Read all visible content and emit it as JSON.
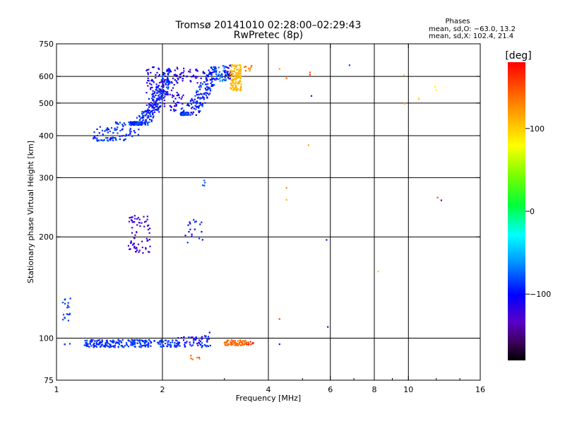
{
  "chart_data": {
    "type": "scatter",
    "title": "Tromsø 20141010 02:28:00–02:29:43",
    "subtitle": "RwPretec (8p)",
    "xlabel": "Frequency [MHz]",
    "ylabel": "Stationary phase Virtual Height [km]",
    "x_scale": "log2",
    "y_scale": "log",
    "xlim": [
      1,
      16
    ],
    "ylim": [
      75,
      750
    ],
    "x_ticks": [
      1,
      2,
      4,
      6,
      8,
      10,
      16
    ],
    "x_tick_labels": [
      "1",
      "2",
      "4",
      "6",
      "8",
      "10",
      "16"
    ],
    "y_ticks": [
      75,
      100,
      200,
      300,
      400,
      500,
      600,
      750
    ],
    "y_tick_labels": [
      "75",
      "100",
      "200",
      "300",
      "400",
      "500",
      "600",
      "750"
    ],
    "x_grid": [
      2,
      4,
      6,
      8,
      10
    ],
    "y_grid": [
      100,
      200,
      300,
      400,
      500,
      600
    ],
    "stats": {
      "heading": "Phases",
      "line1": "mean, sd,O: −63.0, 13.2",
      "line2": "mean, sd,X: 102.4, 21.4"
    },
    "colorbar": {
      "label": "[deg]",
      "min": -180,
      "max": 180,
      "ticks": [
        100,
        0,
        -100
      ],
      "tick_labels": [
        "100",
        "0",
        "−100"
      ]
    },
    "clusters": [
      {
        "f": [
          1.27,
          1.72
        ],
        "h": [
          385,
          440
        ],
        "n": 110,
        "phase": -88,
        "spread": 14,
        "shape": "fTrace",
        "h_lo": 385
      },
      {
        "f": [
          1.62,
          2.12
        ],
        "h": [
          430,
          630
        ],
        "n": 260,
        "phase": -90,
        "spread": 18,
        "shape": "fTrace",
        "h_lo": 400
      },
      {
        "f": [
          1.8,
          2.3
        ],
        "h": [
          470,
          640
        ],
        "n": 160,
        "phase": -112,
        "spread": 16
      },
      {
        "f": [
          2.25,
          2.85
        ],
        "h": [
          460,
          640
        ],
        "n": 200,
        "phase": -92,
        "spread": 18,
        "shape": "fTrace",
        "h_lo": 440
      },
      {
        "f": [
          2.3,
          2.7
        ],
        "h": [
          570,
          630
        ],
        "n": 30,
        "phase": -118,
        "spread": 10
      },
      {
        "f": [
          2.8,
          3.05
        ],
        "h": [
          580,
          650
        ],
        "n": 35,
        "phase": -75,
        "spread": 15
      },
      {
        "f": [
          3.0,
          3.15
        ],
        "h": [
          590,
          650
        ],
        "n": 30,
        "phase": -120,
        "spread": 12
      },
      {
        "f": [
          3.12,
          3.35
        ],
        "h": [
          545,
          650
        ],
        "n": 120,
        "phase": 108,
        "spread": 8
      },
      {
        "f": [
          3.4,
          3.6
        ],
        "h": [
          620,
          650
        ],
        "n": 8,
        "phase": 132,
        "spread": 12
      },
      {
        "f": [
          1.6,
          1.85
        ],
        "h": [
          178,
          232
        ],
        "n": 70,
        "phase": -122,
        "spread": 8
      },
      {
        "f": [
          2.3,
          2.6
        ],
        "h": [
          190,
          225
        ],
        "n": 18,
        "phase": -97,
        "spread": 12
      },
      {
        "f": [
          2.6,
          2.66
        ],
        "h": [
          280,
          295
        ],
        "n": 4,
        "phase": -80,
        "spread": 6
      },
      {
        "f": [
          1.04,
          1.1
        ],
        "h": [
          112,
          132
        ],
        "n": 18,
        "phase": -85,
        "spread": 6
      },
      {
        "f": [
          1.05,
          1.1
        ],
        "h": [
          95,
          97
        ],
        "n": 3,
        "phase": -88,
        "spread": 6
      },
      {
        "f": [
          1.2,
          2.2
        ],
        "h": [
          94,
          99
        ],
        "n": 230,
        "phase": -88,
        "spread": 8
      },
      {
        "f": [
          2.2,
          2.75
        ],
        "h": [
          94,
          101
        ],
        "n": 60,
        "phase": -100,
        "spread": 20
      },
      {
        "f": [
          2.4,
          2.55
        ],
        "h": [
          86,
          89
        ],
        "n": 6,
        "phase": 140,
        "spread": 10
      },
      {
        "f": [
          2.6,
          2.75
        ],
        "h": [
          101,
          104
        ],
        "n": 5,
        "phase": -100,
        "spread": 15
      },
      {
        "f": [
          3.0,
          3.45
        ],
        "h": [
          95,
          99
        ],
        "n": 65,
        "phase": 140,
        "spread": 8
      },
      {
        "f": [
          3.45,
          3.65
        ],
        "h": [
          95,
          98
        ],
        "n": 10,
        "phase": 160,
        "spread": 12
      }
    ],
    "isolated_points": [
      {
        "f": 4.3,
        "h": 632,
        "phase": 120
      },
      {
        "f": 4.5,
        "h": 593,
        "phase": 140
      },
      {
        "f": 5.25,
        "h": 617,
        "phase": 150
      },
      {
        "f": 5.25,
        "h": 607,
        "phase": 160
      },
      {
        "f": 5.3,
        "h": 525,
        "phase": -130
      },
      {
        "f": 5.2,
        "h": 375,
        "phase": 115
      },
      {
        "f": 4.5,
        "h": 280,
        "phase": 125
      },
      {
        "f": 4.5,
        "h": 258,
        "phase": 110
      },
      {
        "f": 5.85,
        "h": 196,
        "phase": -95
      },
      {
        "f": 4.3,
        "h": 114,
        "phase": 150
      },
      {
        "f": 5.9,
        "h": 108,
        "phase": -135
      },
      {
        "f": 4.3,
        "h": 96,
        "phase": -130
      },
      {
        "f": 6.8,
        "h": 648,
        "phase": -85
      },
      {
        "f": 8.2,
        "h": 158,
        "phase": 100
      },
      {
        "f": 9.7,
        "h": 605,
        "phase": 100
      },
      {
        "f": 9.75,
        "h": 498,
        "phase": 120
      },
      {
        "f": 10.7,
        "h": 515,
        "phase": 110
      },
      {
        "f": 11.9,
        "h": 560,
        "phase": 85
      },
      {
        "f": 12.0,
        "h": 548,
        "phase": 80
      },
      {
        "f": 12.1,
        "h": 262,
        "phase": 150
      },
      {
        "f": 12.4,
        "h": 257,
        "phase": -130
      }
    ]
  }
}
